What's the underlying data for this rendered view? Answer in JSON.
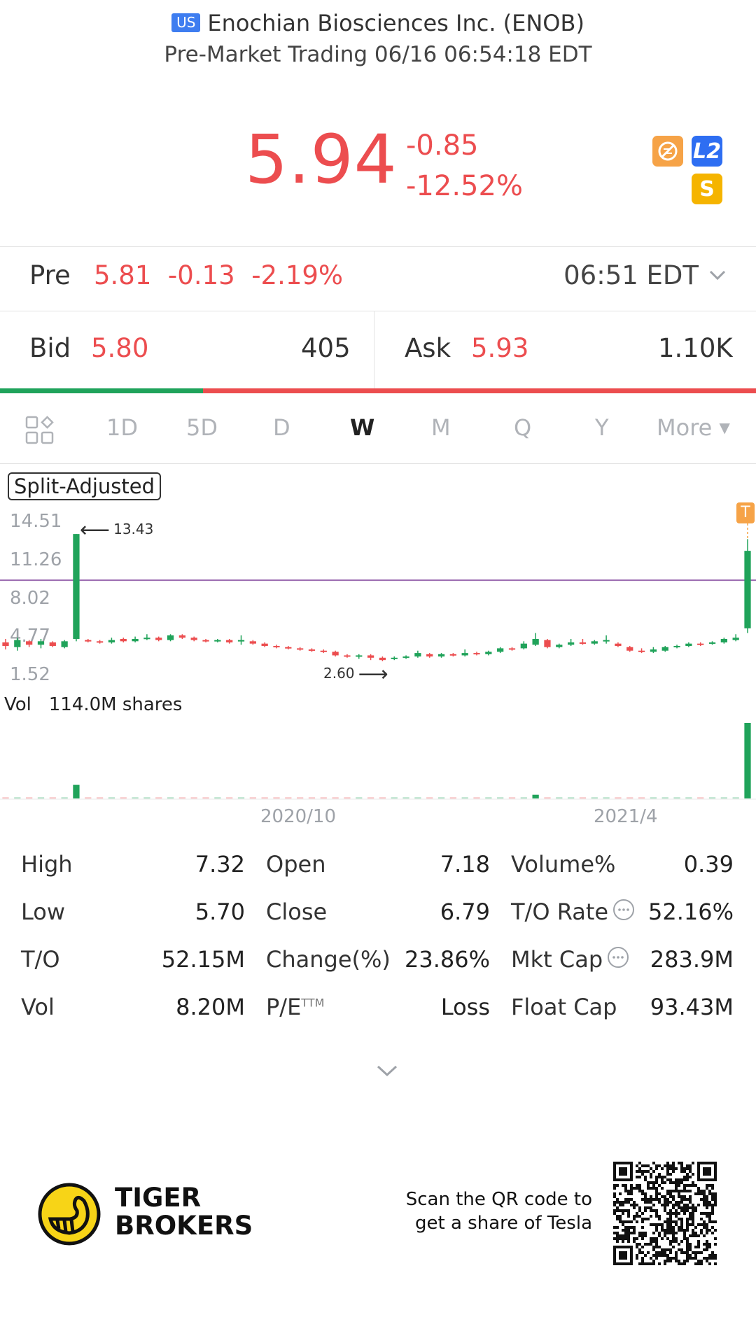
{
  "header": {
    "market_badge": "US",
    "title": "Enochian Biosciences Inc. (ENOB)",
    "subtitle": "Pre-Market Trading 06/16 06:54:18 EDT"
  },
  "quote": {
    "price": "5.94",
    "change": "-0.85",
    "change_pct": "-12.52%"
  },
  "badges": {
    "icon1": "no-share-icon",
    "icon2": "L2",
    "icon3": "S"
  },
  "premarket": {
    "label": "Pre",
    "price": "5.81",
    "change": "-0.13",
    "change_pct": "-2.19%",
    "time": "06:51 EDT"
  },
  "bid": {
    "label": "Bid",
    "price": "5.80",
    "size": "405"
  },
  "ask": {
    "label": "Ask",
    "price": "5.93",
    "size": "1.10K"
  },
  "bid_ask_ratio": 0.27,
  "tabs": [
    "1D",
    "5D",
    "D",
    "W",
    "M",
    "Q",
    "Y",
    "More"
  ],
  "active_tab": "W",
  "chart": {
    "adjust_label": "Split-Adjusted",
    "y_ticks": [
      "14.51",
      "11.26",
      "8.02",
      "4.77",
      "1.52"
    ],
    "high_marker": "13.43",
    "low_marker": "2.60",
    "vol_label": "Vol",
    "vol_value": "114.0M shares",
    "x_ticks": [
      "2020/10",
      "2021/4"
    ],
    "trade_marker": "T",
    "reference_line": 9.5,
    "colors": {
      "up": "#20a35a",
      "down": "#ec4d4f",
      "ref_line": "#9a6ab0",
      "marker": "#f6a347"
    }
  },
  "chart_data": {
    "type": "candlestick",
    "y_range": [
      1.52,
      14.51
    ],
    "candles": [
      {
        "o": 4.2,
        "c": 3.9,
        "h": 4.5,
        "l": 3.6
      },
      {
        "o": 3.8,
        "c": 4.4,
        "h": 4.6,
        "l": 3.5
      },
      {
        "o": 4.3,
        "c": 4.0,
        "h": 4.4,
        "l": 3.8
      },
      {
        "o": 4.0,
        "c": 4.3,
        "h": 4.5,
        "l": 3.7
      },
      {
        "o": 4.2,
        "c": 3.9,
        "h": 4.3,
        "l": 3.8
      },
      {
        "o": 3.8,
        "c": 4.3,
        "h": 4.4,
        "l": 3.7
      },
      {
        "o": 4.5,
        "c": 13.43,
        "h": 13.43,
        "l": 4.3
      },
      {
        "o": 4.4,
        "c": 4.3,
        "h": 4.5,
        "l": 4.2
      },
      {
        "o": 4.3,
        "c": 4.2,
        "h": 4.4,
        "l": 4.1
      },
      {
        "o": 4.2,
        "c": 4.4,
        "h": 4.6,
        "l": 4.1
      },
      {
        "o": 4.5,
        "c": 4.3,
        "h": 4.6,
        "l": 4.2
      },
      {
        "o": 4.3,
        "c": 4.5,
        "h": 4.7,
        "l": 4.2
      },
      {
        "o": 4.5,
        "c": 4.6,
        "h": 4.9,
        "l": 4.4
      },
      {
        "o": 4.6,
        "c": 4.4,
        "h": 4.7,
        "l": 4.3
      },
      {
        "o": 4.4,
        "c": 4.8,
        "h": 4.9,
        "l": 4.3
      },
      {
        "o": 4.8,
        "c": 4.6,
        "h": 4.9,
        "l": 4.5
      },
      {
        "o": 4.6,
        "c": 4.4,
        "h": 4.7,
        "l": 4.3
      },
      {
        "o": 4.4,
        "c": 4.3,
        "h": 4.5,
        "l": 4.2
      },
      {
        "o": 4.3,
        "c": 4.4,
        "h": 4.5,
        "l": 4.2
      },
      {
        "o": 4.4,
        "c": 4.2,
        "h": 4.5,
        "l": 4.1
      },
      {
        "o": 4.3,
        "c": 4.4,
        "h": 4.8,
        "l": 4.0
      },
      {
        "o": 4.3,
        "c": 4.1,
        "h": 4.4,
        "l": 4.0
      },
      {
        "o": 4.1,
        "c": 3.9,
        "h": 4.2,
        "l": 3.8
      },
      {
        "o": 3.9,
        "c": 3.8,
        "h": 4.0,
        "l": 3.7
      },
      {
        "o": 3.8,
        "c": 3.7,
        "h": 3.9,
        "l": 3.6
      },
      {
        "o": 3.7,
        "c": 3.6,
        "h": 3.8,
        "l": 3.5
      },
      {
        "o": 3.6,
        "c": 3.5,
        "h": 3.7,
        "l": 3.4
      },
      {
        "o": 3.5,
        "c": 3.4,
        "h": 3.6,
        "l": 3.3
      },
      {
        "o": 3.4,
        "c": 3.1,
        "h": 3.5,
        "l": 3.0
      },
      {
        "o": 3.1,
        "c": 3.0,
        "h": 3.2,
        "l": 2.9
      },
      {
        "o": 3.0,
        "c": 3.1,
        "h": 3.2,
        "l": 2.8
      },
      {
        "o": 3.1,
        "c": 2.9,
        "h": 3.2,
        "l": 2.7
      },
      {
        "o": 2.9,
        "c": 2.7,
        "h": 3.0,
        "l": 2.6
      },
      {
        "o": 2.8,
        "c": 2.9,
        "h": 3.0,
        "l": 2.7
      },
      {
        "o": 2.9,
        "c": 3.0,
        "h": 3.1,
        "l": 2.8
      },
      {
        "o": 3.0,
        "c": 3.3,
        "h": 3.5,
        "l": 2.9
      },
      {
        "o": 3.2,
        "c": 3.0,
        "h": 3.3,
        "l": 2.9
      },
      {
        "o": 3.0,
        "c": 3.2,
        "h": 3.3,
        "l": 2.9
      },
      {
        "o": 3.2,
        "c": 3.1,
        "h": 3.3,
        "l": 3.0
      },
      {
        "o": 3.1,
        "c": 3.3,
        "h": 3.6,
        "l": 3.0
      },
      {
        "o": 3.3,
        "c": 3.2,
        "h": 3.4,
        "l": 3.1
      },
      {
        "o": 3.2,
        "c": 3.4,
        "h": 3.5,
        "l": 3.1
      },
      {
        "o": 3.4,
        "c": 3.7,
        "h": 3.8,
        "l": 3.3
      },
      {
        "o": 3.7,
        "c": 3.6,
        "h": 3.8,
        "l": 3.5
      },
      {
        "o": 3.7,
        "c": 4.1,
        "h": 4.3,
        "l": 3.6
      },
      {
        "o": 4.0,
        "c": 4.5,
        "h": 5.0,
        "l": 3.9
      },
      {
        "o": 4.4,
        "c": 3.8,
        "h": 4.5,
        "l": 3.7
      },
      {
        "o": 3.8,
        "c": 4.0,
        "h": 4.1,
        "l": 3.7
      },
      {
        "o": 4.0,
        "c": 4.2,
        "h": 4.5,
        "l": 3.9
      },
      {
        "o": 4.2,
        "c": 4.1,
        "h": 4.5,
        "l": 4.0
      },
      {
        "o": 4.1,
        "c": 4.3,
        "h": 4.4,
        "l": 4.0
      },
      {
        "o": 4.3,
        "c": 4.4,
        "h": 4.8,
        "l": 4.1
      },
      {
        "o": 4.1,
        "c": 3.9,
        "h": 4.2,
        "l": 3.8
      },
      {
        "o": 3.8,
        "c": 3.5,
        "h": 3.9,
        "l": 3.4
      },
      {
        "o": 3.5,
        "c": 3.4,
        "h": 3.7,
        "l": 3.3
      },
      {
        "o": 3.4,
        "c": 3.6,
        "h": 3.8,
        "l": 3.3
      },
      {
        "o": 3.5,
        "c": 3.8,
        "h": 3.9,
        "l": 3.4
      },
      {
        "o": 3.8,
        "c": 3.9,
        "h": 4.0,
        "l": 3.7
      },
      {
        "o": 3.9,
        "c": 4.1,
        "h": 4.2,
        "l": 3.8
      },
      {
        "o": 4.1,
        "c": 4.0,
        "h": 4.2,
        "l": 3.9
      },
      {
        "o": 4.1,
        "c": 4.2,
        "h": 4.3,
        "l": 4.0
      },
      {
        "o": 4.2,
        "c": 4.5,
        "h": 4.6,
        "l": 4.1
      },
      {
        "o": 4.4,
        "c": 4.6,
        "h": 4.9,
        "l": 4.3
      },
      {
        "o": 5.4,
        "c": 12.0,
        "h": 13.0,
        "l": 5.0
      }
    ],
    "volume": [
      0.4,
      0.4,
      0.4,
      0.4,
      0.4,
      0.4,
      20.5,
      0.7,
      0.6,
      0.6,
      0.6,
      0.6,
      0.6,
      0.6,
      0.6,
      0.6,
      0.6,
      0.6,
      0.6,
      0.6,
      0.6,
      0.6,
      0.6,
      0.6,
      0.6,
      0.6,
      0.6,
      0.6,
      0.6,
      0.6,
      0.6,
      0.6,
      0.6,
      0.6,
      0.6,
      0.6,
      0.6,
      0.6,
      0.6,
      0.6,
      0.6,
      0.6,
      0.6,
      0.6,
      0.6,
      5.6,
      0.6,
      0.6,
      0.6,
      0.6,
      0.6,
      0.6,
      0.6,
      0.6,
      0.6,
      0.6,
      0.6,
      0.6,
      0.6,
      0.6,
      0.6,
      0.6,
      0.6,
      114.0
    ],
    "volume_unit": "M shares"
  },
  "stats": [
    [
      {
        "label": "High",
        "value": "7.32"
      },
      {
        "label": "Open",
        "value": "7.18"
      },
      {
        "label": "Volume%",
        "value": "0.39"
      }
    ],
    [
      {
        "label": "Low",
        "value": "5.70"
      },
      {
        "label": "Close",
        "value": "6.79"
      },
      {
        "label": "T/O Rate",
        "value": "52.16%",
        "info": true
      }
    ],
    [
      {
        "label": "T/O",
        "value": "52.15M"
      },
      {
        "label": "Change(%)",
        "value": "23.86%"
      },
      {
        "label": "Mkt Cap",
        "value": "283.9M",
        "info": true
      }
    ],
    [
      {
        "label": "Vol",
        "value": "8.20M"
      },
      {
        "label": "P/E",
        "sup": "TTM",
        "value": "Loss"
      },
      {
        "label": "Float Cap",
        "value": "93.43M"
      }
    ]
  ],
  "footer": {
    "brand_line1": "TIGER",
    "brand_line2": "BROKERS",
    "scan_line1": "Scan the QR code to",
    "scan_line2": "get a share of Tesla"
  }
}
